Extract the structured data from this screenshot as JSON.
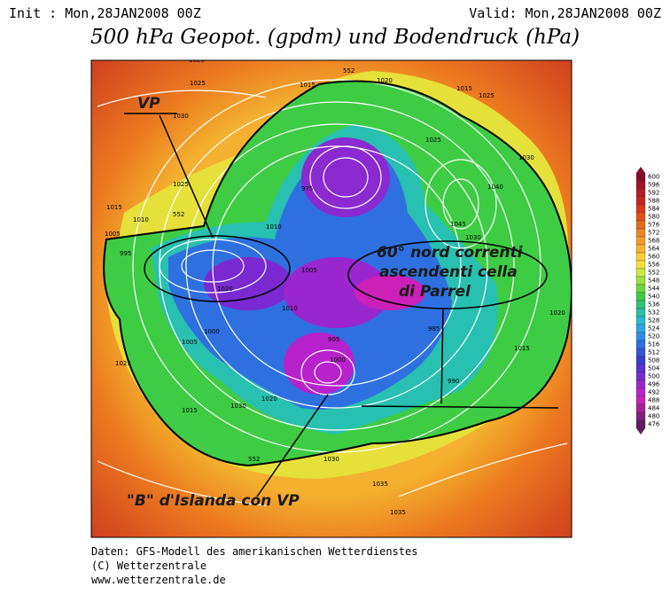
{
  "header": {
    "init": "Init : Mon,28JAN2008 00Z",
    "valid": "Valid: Mon,28JAN2008 00Z",
    "title": "500 hPa Geopot. (gpdm) und Bodendruck (hPa)"
  },
  "annotations": {
    "vp": "VP",
    "parrel": [
      "60° nord correnti",
      "ascendenti cella",
      "di Parrel"
    ],
    "islanda": "\"B\" d'Islanda con VP"
  },
  "map_labels": [
    "1020",
    "1025",
    "1030",
    "1015",
    "1025",
    "1010",
    "1005",
    "995",
    "1015",
    "1020",
    "1005",
    "1010",
    "1000",
    "995",
    "1020",
    "1015",
    "1030",
    "1035",
    "1040",
    "1045",
    "1025",
    "1015",
    "1030",
    "1020",
    "1010",
    "1005",
    "1000",
    "990",
    "985",
    "975",
    "1020",
    "1030",
    "1035",
    "1025",
    "1030",
    "1015",
    "552",
    "552",
    "552",
    "1025"
  ],
  "legend": {
    "levels": [
      600,
      596,
      592,
      588,
      584,
      580,
      576,
      572,
      568,
      564,
      560,
      556,
      552,
      548,
      544,
      540,
      536,
      532,
      528,
      524,
      520,
      516,
      512,
      508,
      504,
      500,
      496,
      492,
      488,
      484,
      480,
      476
    ],
    "colors": [
      "#8a0a2a",
      "#a0122a",
      "#b51a26",
      "#c82420",
      "#d83a1c",
      "#e4521c",
      "#ec6a1e",
      "#f08424",
      "#f49c2a",
      "#f8b430",
      "#fccc34",
      "#f2e038",
      "#cce83a",
      "#9ee03c",
      "#6ed63e",
      "#3ecc44",
      "#2ec478",
      "#28c0a8",
      "#26bcd0",
      "#2aa8e8",
      "#2e8ce8",
      "#2f70e0",
      "#3254d8",
      "#3a3cd0",
      "#5a30d0",
      "#7a2ad0",
      "#9a26d0",
      "#b822cc",
      "#cc20b8",
      "#a8209c",
      "#82207e",
      "#5e1e60"
    ]
  },
  "footer": [
    "Daten: GFS-Modell des amerikanischen Wetterdienstes",
    "(C) Wetterzentrale",
    "www.wetterzentrale.de"
  ]
}
